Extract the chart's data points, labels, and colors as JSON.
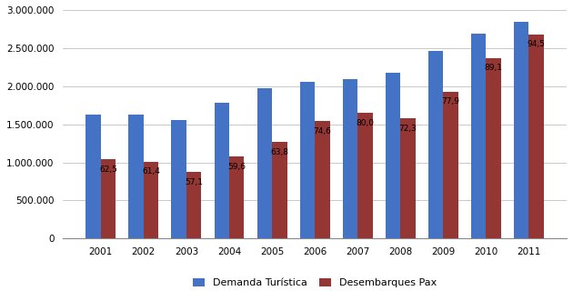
{
  "years": [
    2001,
    2002,
    2003,
    2004,
    2005,
    2006,
    2007,
    2008,
    2009,
    2010,
    2011
  ],
  "demanda_turistica": [
    1630000,
    1630000,
    1550000,
    1780000,
    1970000,
    2060000,
    2090000,
    2180000,
    2460000,
    2690000,
    2840000
  ],
  "desembarques_pax": [
    1040000,
    1010000,
    870000,
    1075000,
    1270000,
    1540000,
    1650000,
    1580000,
    1930000,
    2370000,
    2680000
  ],
  "annotations_red": [
    "62,5",
    "61,4",
    "57,1",
    "59,6",
    "63,8",
    "74,6",
    "80,0",
    "72,3",
    "77,9",
    "89,1",
    "94,5"
  ],
  "color_blue": "#4472C4",
  "color_red": "#943634",
  "legend_blue": "Demanda Turística",
  "legend_red": "Desembarques Pax",
  "ylim": [
    0,
    3000000
  ],
  "yticks": [
    0,
    500000,
    1000000,
    1500000,
    2000000,
    2500000,
    3000000
  ],
  "background_color": "#FFFFFF",
  "grid_color": "#C0C0C0",
  "bar_width": 0.35,
  "figwidth": 6.3,
  "figheight": 3.2,
  "dpi": 100
}
